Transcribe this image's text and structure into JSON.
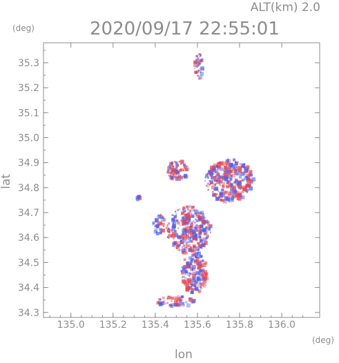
{
  "header": {
    "altitude_label": "ALT(km) 2.0",
    "datetime": "2020/09/17 22:55:01",
    "y_unit": "(deg)",
    "x_unit": "(deg)"
  },
  "colors": {
    "positive": "#e8474f",
    "negative": "#4a5ff0",
    "axis": "#8c8c8c"
  },
  "chart_data": {
    "type": "heatmap",
    "title": "2020/09/17 22:55:01",
    "subtitle": "ALT(km) 2.0",
    "xlabel": "lon",
    "ylabel": "lat",
    "x_unit": "(deg)",
    "y_unit": "(deg)",
    "xlim": [
      134.87,
      136.18
    ],
    "ylim": [
      34.28,
      35.38
    ],
    "x_ticks": [
      "135.0",
      "135.2",
      "135.4",
      "135.6",
      "135.8",
      "136.0"
    ],
    "y_ticks": [
      "34.3",
      "34.4",
      "34.5",
      "34.6",
      "34.7",
      "34.8",
      "34.9",
      "35.0",
      "35.1",
      "35.2",
      "35.3"
    ],
    "grid": false,
    "echo_regions": [
      {
        "lon": [
          135.45,
          135.66
        ],
        "lat": [
          34.54,
          34.73
        ]
      },
      {
        "lon": [
          135.52,
          135.64
        ],
        "lat": [
          34.38,
          34.55
        ]
      },
      {
        "lon": [
          135.63,
          135.86
        ],
        "lat": [
          34.75,
          34.92
        ]
      },
      {
        "lon": [
          135.45,
          135.55
        ],
        "lat": [
          34.83,
          34.92
        ]
      },
      {
        "lon": [
          135.4,
          135.58
        ],
        "lat": [
          34.33,
          34.37
        ]
      },
      {
        "lon": [
          135.58,
          135.62
        ],
        "lat": [
          35.24,
          35.35
        ]
      },
      {
        "lon": [
          135.3,
          135.32
        ],
        "lat": [
          34.76,
          34.78
        ]
      },
      {
        "lon": [
          135.38,
          135.44
        ],
        "lat": [
          34.62,
          34.7
        ]
      }
    ]
  }
}
